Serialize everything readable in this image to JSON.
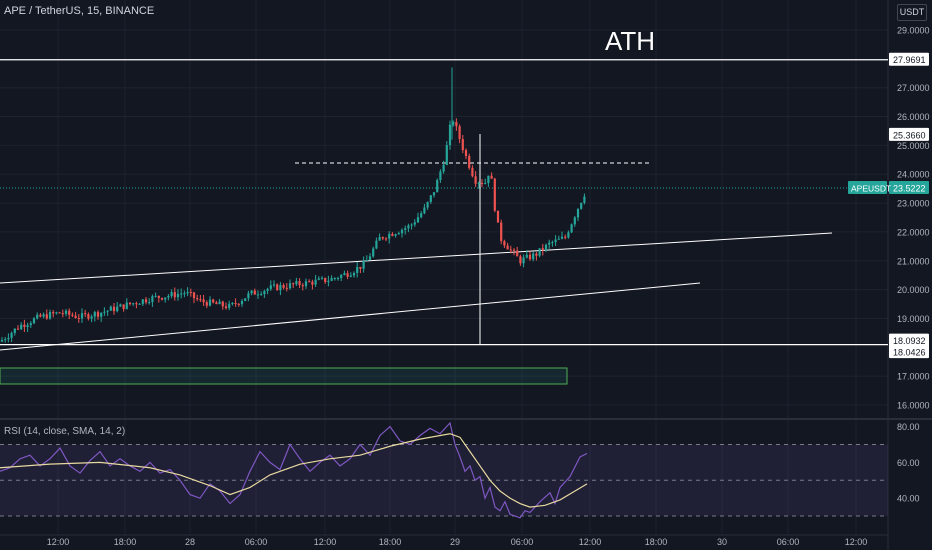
{
  "header": {
    "symbol_line": "APE / TetherUS, 15, BINANCE"
  },
  "currency_button": "USDT",
  "annotation": "ATH",
  "rsi_header": "RSI (14, close, SMA, 14, 2)",
  "colors": {
    "background": "#131722",
    "up": "#26a69a",
    "down": "#ef5350",
    "rsi": "#7e57c2",
    "rsi_ma": "#e8d9a0"
  },
  "chart_data": {
    "type": "candlestick",
    "price_axis": {
      "min": 16.0,
      "max": 29.0,
      "ticks": [
        "29.0000",
        "27.0000",
        "26.0000",
        "25.0000",
        "24.0000",
        "23.0000",
        "22.0000",
        "21.0000",
        "20.0000",
        "19.0000",
        "17.0000",
        "16.0000"
      ]
    },
    "price_labels": [
      {
        "text": "27.9691",
        "value": 27.9691
      },
      {
        "text": "25.3660",
        "value": 25.366
      },
      {
        "text": "23.5222",
        "value": 23.5222,
        "tag": "APEUSDT"
      },
      {
        "text": "18.0932",
        "value": 18.0932
      },
      {
        "text": "18.0426",
        "value": 18.0426
      }
    ],
    "time_axis": [
      "12:00",
      "18:00",
      "28",
      "06:00",
      "12:00",
      "18:00",
      "29",
      "06:00",
      "12:00",
      "18:00",
      "30",
      "06:00",
      "12:00"
    ],
    "path": [
      [
        0,
        18.2
      ],
      [
        20,
        18.75
      ],
      [
        40,
        19.05
      ],
      [
        60,
        19.2
      ],
      [
        80,
        19.05
      ],
      [
        100,
        19.2
      ],
      [
        120,
        19.4
      ],
      [
        150,
        19.7
      ],
      [
        170,
        19.8
      ],
      [
        185,
        19.9
      ],
      [
        200,
        19.6
      ],
      [
        215,
        19.5
      ],
      [
        230,
        19.4
      ],
      [
        250,
        19.85
      ],
      [
        270,
        20.05
      ],
      [
        300,
        20.2
      ],
      [
        330,
        20.35
      ],
      [
        350,
        20.6
      ],
      [
        365,
        20.9
      ],
      [
        380,
        21.8
      ],
      [
        395,
        22.0
      ],
      [
        410,
        22.2
      ],
      [
        425,
        22.8
      ],
      [
        435,
        23.5
      ],
      [
        445,
        24.6
      ],
      [
        452,
        26.0
      ],
      [
        458,
        25.4
      ],
      [
        465,
        24.7
      ],
      [
        475,
        23.8
      ],
      [
        485,
        23.7
      ],
      [
        490,
        24.2
      ],
      [
        495,
        22.8
      ],
      [
        500,
        21.8
      ],
      [
        510,
        21.4
      ],
      [
        520,
        21.0
      ],
      [
        535,
        21.2
      ],
      [
        550,
        21.6
      ],
      [
        565,
        21.8
      ],
      [
        575,
        22.6
      ],
      [
        580,
        23.0
      ],
      [
        587,
        23.52
      ]
    ],
    "last": 23.5222,
    "rsi": {
      "axis": {
        "min": 25,
        "max": 82,
        "ticks": [
          "80.00",
          "60.00",
          "40.00"
        ]
      },
      "bands": [
        70,
        50,
        30
      ],
      "values": [
        [
          0,
          55
        ],
        [
          10,
          57
        ],
        [
          20,
          62
        ],
        [
          30,
          64
        ],
        [
          40,
          58
        ],
        [
          50,
          62
        ],
        [
          60,
          68
        ],
        [
          70,
          58
        ],
        [
          80,
          54
        ],
        [
          90,
          61
        ],
        [
          100,
          66
        ],
        [
          110,
          58
        ],
        [
          120,
          62
        ],
        [
          130,
          58
        ],
        [
          140,
          55
        ],
        [
          150,
          60
        ],
        [
          160,
          54
        ],
        [
          170,
          56
        ],
        [
          180,
          50
        ],
        [
          190,
          42
        ],
        [
          200,
          40
        ],
        [
          210,
          48
        ],
        [
          220,
          44
        ],
        [
          230,
          37
        ],
        [
          240,
          42
        ],
        [
          250,
          55
        ],
        [
          260,
          66
        ],
        [
          270,
          60
        ],
        [
          280,
          56
        ],
        [
          290,
          70
        ],
        [
          300,
          62
        ],
        [
          310,
          55
        ],
        [
          320,
          60
        ],
        [
          330,
          64
        ],
        [
          340,
          58
        ],
        [
          350,
          62
        ],
        [
          360,
          70
        ],
        [
          370,
          64
        ],
        [
          380,
          75
        ],
        [
          390,
          80
        ],
        [
          400,
          72
        ],
        [
          410,
          70
        ],
        [
          420,
          75
        ],
        [
          430,
          79
        ],
        [
          440,
          76
        ],
        [
          450,
          82
        ],
        [
          455,
          70
        ],
        [
          460,
          63
        ],
        [
          465,
          55
        ],
        [
          470,
          58
        ],
        [
          475,
          50
        ],
        [
          480,
          52
        ],
        [
          485,
          40
        ],
        [
          490,
          46
        ],
        [
          495,
          35
        ],
        [
          500,
          33
        ],
        [
          505,
          38
        ],
        [
          510,
          31
        ],
        [
          515,
          30
        ],
        [
          520,
          29
        ],
        [
          525,
          33
        ],
        [
          530,
          32
        ],
        [
          540,
          38
        ],
        [
          550,
          43
        ],
        [
          555,
          37
        ],
        [
          560,
          46
        ],
        [
          570,
          52
        ],
        [
          580,
          63
        ],
        [
          587,
          65
        ]
      ],
      "ma": [
        [
          0,
          57
        ],
        [
          50,
          59
        ],
        [
          100,
          60
        ],
        [
          150,
          57
        ],
        [
          180,
          53
        ],
        [
          210,
          47
        ],
        [
          230,
          42
        ],
        [
          250,
          46
        ],
        [
          270,
          53
        ],
        [
          300,
          59
        ],
        [
          330,
          62
        ],
        [
          360,
          64
        ],
        [
          390,
          69
        ],
        [
          420,
          73
        ],
        [
          450,
          76
        ],
        [
          460,
          74
        ],
        [
          470,
          66
        ],
        [
          480,
          58
        ],
        [
          490,
          50
        ],
        [
          500,
          44
        ],
        [
          510,
          40
        ],
        [
          520,
          37
        ],
        [
          530,
          35
        ],
        [
          545,
          36
        ],
        [
          560,
          39
        ],
        [
          575,
          44
        ],
        [
          587,
          48
        ]
      ]
    }
  }
}
